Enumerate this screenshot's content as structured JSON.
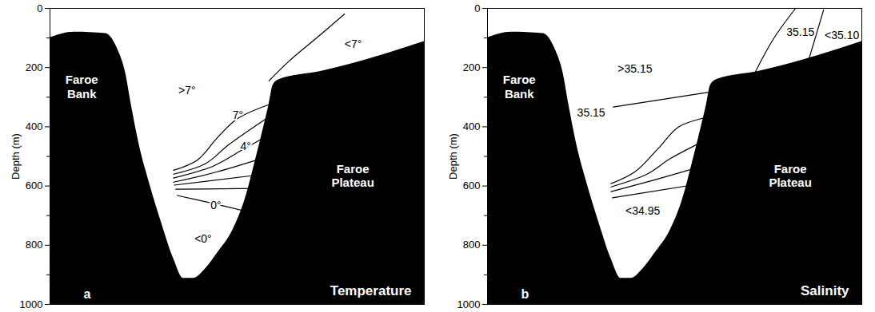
{
  "chart_data": [
    {
      "type": "section",
      "panel": "a",
      "title": "Temperature",
      "y_label": "Depth (m)",
      "xlim": [
        0,
        100
      ],
      "ylim": [
        1000,
        0
      ],
      "yticks": [
        0,
        200,
        400,
        600,
        800,
        1000
      ],
      "minor_yticks": [
        100,
        300,
        500,
        700,
        900
      ],
      "tick_labels": "y",
      "bathymetry": {
        "x": [
          0,
          6.4,
          14.9,
          18.1,
          20.2,
          21.7,
          23.8,
          26.6,
          29.8,
          33.0,
          35.7,
          38.3,
          41.5,
          44.7,
          48.9,
          52.1,
          54.9,
          57.0,
          58.5,
          59.6,
          61.3,
          72.3,
          85.1,
          100
        ],
        "depth": [
          99,
          80,
          85,
          139,
          219,
          325,
          459,
          592,
          725,
          845,
          912,
          912,
          880,
          827,
          747,
          645,
          512,
          405,
          325,
          259,
          240,
          213,
          171,
          112
        ]
      },
      "land_labels": [
        {
          "text": "Faroe Bank",
          "x": 8.5,
          "depth": 264
        },
        {
          "text": "Faroe Plateau",
          "x": 80.9,
          "depth": 565
        }
      ],
      "contours": [
        {
          "x": [
            58.5,
            63.8,
            71.3,
            78.7
          ],
          "depth": [
            245,
            179,
            99,
            19
          ]
        },
        {
          "x": [
            33.0,
            39.4,
            44.7,
            50.0,
            59.6
          ],
          "depth": [
            547,
            512,
            437,
            373,
            320
          ]
        },
        {
          "x": [
            33.0,
            41.5,
            47.9,
            59.6
          ],
          "depth": [
            560,
            525,
            459,
            357
          ]
        },
        {
          "x": [
            33.0,
            43.6,
            51.1,
            59.6
          ],
          "depth": [
            573,
            533,
            480,
            419
          ]
        },
        {
          "x": [
            33.0,
            44.7,
            58.5
          ],
          "depth": [
            587,
            552,
            499
          ]
        },
        {
          "x": [
            33.2,
            57.4
          ],
          "depth": [
            597,
            560
          ]
        },
        {
          "x": [
            33.6,
            55.3
          ],
          "depth": [
            611,
            608
          ]
        },
        {
          "x": [
            34.0,
            42.6,
            53.2
          ],
          "depth": [
            632,
            656,
            688
          ]
        }
      ],
      "labels": [
        {
          "text": ">7°",
          "x": 36.6,
          "depth": 277
        },
        {
          "text": "<7°",
          "x": 81.0,
          "depth": 120
        },
        {
          "text": "7°",
          "x": 50.2,
          "depth": 360
        },
        {
          "text": "4°",
          "x": 52.3,
          "depth": 467
        },
        {
          "text": "0°",
          "x": 44.3,
          "depth": 667
        },
        {
          "text": "<0°",
          "x": 40.9,
          "depth": 779
        }
      ]
    },
    {
      "type": "section",
      "panel": "b",
      "title": "Salinity",
      "y_label": "Depth (m)",
      "xlim": [
        0,
        100
      ],
      "ylim": [
        1000,
        0
      ],
      "yticks": [
        0,
        200,
        400,
        600,
        800,
        1000
      ],
      "minor_yticks": [
        100,
        300,
        500,
        700,
        900
      ],
      "tick_labels": "y",
      "bathymetry": {
        "x": [
          0,
          6.4,
          14.9,
          18.1,
          20.2,
          21.7,
          23.8,
          26.6,
          29.8,
          33.0,
          35.7,
          38.3,
          41.5,
          44.7,
          48.9,
          52.1,
          54.9,
          57.0,
          58.5,
          59.6,
          61.3,
          72.3,
          85.1,
          100
        ],
        "depth": [
          99,
          80,
          85,
          139,
          219,
          325,
          459,
          592,
          725,
          845,
          912,
          912,
          880,
          827,
          747,
          645,
          512,
          405,
          325,
          259,
          240,
          213,
          171,
          112
        ]
      },
      "land_labels": [
        {
          "text": "Faroe Bank",
          "x": 8.5,
          "depth": 264
        },
        {
          "text": "Faroe Plateau",
          "x": 80.9,
          "depth": 565
        }
      ],
      "contours": [
        {
          "x": [
            69.8,
            76.2,
            82.3
          ],
          "depth": [
            259,
            107,
            0
          ]
        },
        {
          "x": [
            85.5,
            89.8
          ],
          "depth": [
            187,
            5
          ]
        },
        {
          "x": [
            33.6,
            64.9
          ],
          "depth": [
            333,
            272
          ]
        },
        {
          "x": [
            33.0,
            39.4,
            45.7,
            51.1,
            59.6
          ],
          "depth": [
            592,
            552,
            472,
            400,
            365
          ]
        },
        {
          "x": [
            33.0,
            42.6,
            48.9,
            59.6
          ],
          "depth": [
            603,
            560,
            507,
            437
          ]
        },
        {
          "x": [
            33.0,
            44.7,
            59.6
          ],
          "depth": [
            619,
            579,
            525
          ]
        },
        {
          "x": [
            33.4,
            59.6
          ],
          "depth": [
            640,
            587
          ]
        }
      ],
      "labels": [
        {
          "text": ">35.15",
          "x": 39.4,
          "depth": 205
        },
        {
          "text": "35.15",
          "x": 83.6,
          "depth": 80
        },
        {
          "text": "<35.10",
          "x": 94.7,
          "depth": 91
        },
        {
          "text": "35.15",
          "x": 27.7,
          "depth": 352
        },
        {
          "text": "<34.95",
          "x": 41.5,
          "depth": 685
        }
      ]
    }
  ]
}
